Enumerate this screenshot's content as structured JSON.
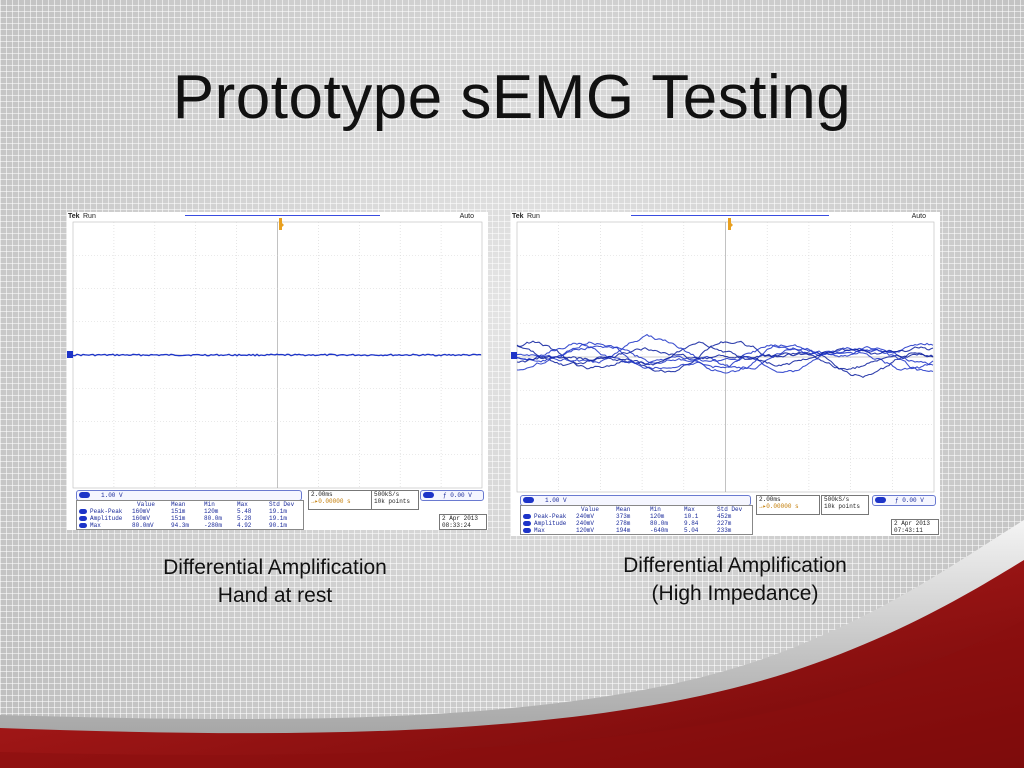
{
  "slide": {
    "title": "Prototype sEMG Testing"
  },
  "scope_left": {
    "brand": "Tek",
    "state": "Run",
    "trigger_mode": "Auto",
    "channel_scale": "1.00 V",
    "timebase": "2.00ms",
    "trigger_offset": "→▸0.00000 s",
    "sample_rate": "500kS/s",
    "record_length": "10k points",
    "trigger_level": "0.00 V",
    "date": "2 Apr 2013",
    "time": "08:33:24",
    "headers": [
      "Value",
      "Mean",
      "Min",
      "Max",
      "Std Dev"
    ],
    "rows": [
      {
        "label": "Peak-Peak",
        "values": [
          "160mV",
          "151m",
          "120m",
          "5.48",
          "19.1m"
        ]
      },
      {
        "label": "Amplitude",
        "values": [
          "160mV",
          "151m",
          "80.0m",
          "5.28",
          "19.1m"
        ]
      },
      {
        "label": "Max",
        "values": [
          "80.0mV",
          "94.3m",
          "-280m",
          "4.92",
          "90.1m"
        ]
      }
    ],
    "trace": "flat"
  },
  "scope_right": {
    "brand": "Tek",
    "state": "Run",
    "trigger_mode": "Auto",
    "channel_scale": "1.00 V",
    "timebase": "2.00ms",
    "trigger_offset": "→▸0.00000 s",
    "sample_rate": "500kS/s",
    "record_length": "10k points",
    "trigger_level": "0.00 V",
    "date": "2 Apr 2013",
    "time": "07:43:11",
    "headers": [
      "Value",
      "Mean",
      "Min",
      "Max",
      "Std Dev"
    ],
    "rows": [
      {
        "label": "Peak-Peak",
        "values": [
          "240mV",
          "373m",
          "120m",
          "10.1",
          "452m"
        ]
      },
      {
        "label": "Amplitude",
        "values": [
          "240mV",
          "278m",
          "80.0m",
          "9.84",
          "227m"
        ]
      },
      {
        "label": "Max",
        "values": [
          "120mV",
          "194m",
          "-640m",
          "5.04",
          "233m"
        ]
      }
    ],
    "trace": "noisy"
  },
  "captions": {
    "left_line1": "Differential Amplification",
    "left_line2": "Hand at rest",
    "right_line1": "Differential Amplification",
    "right_line2": "(High Impedance)"
  },
  "colors": {
    "trace": "#1d34c8",
    "accent_red": "#a01818"
  }
}
